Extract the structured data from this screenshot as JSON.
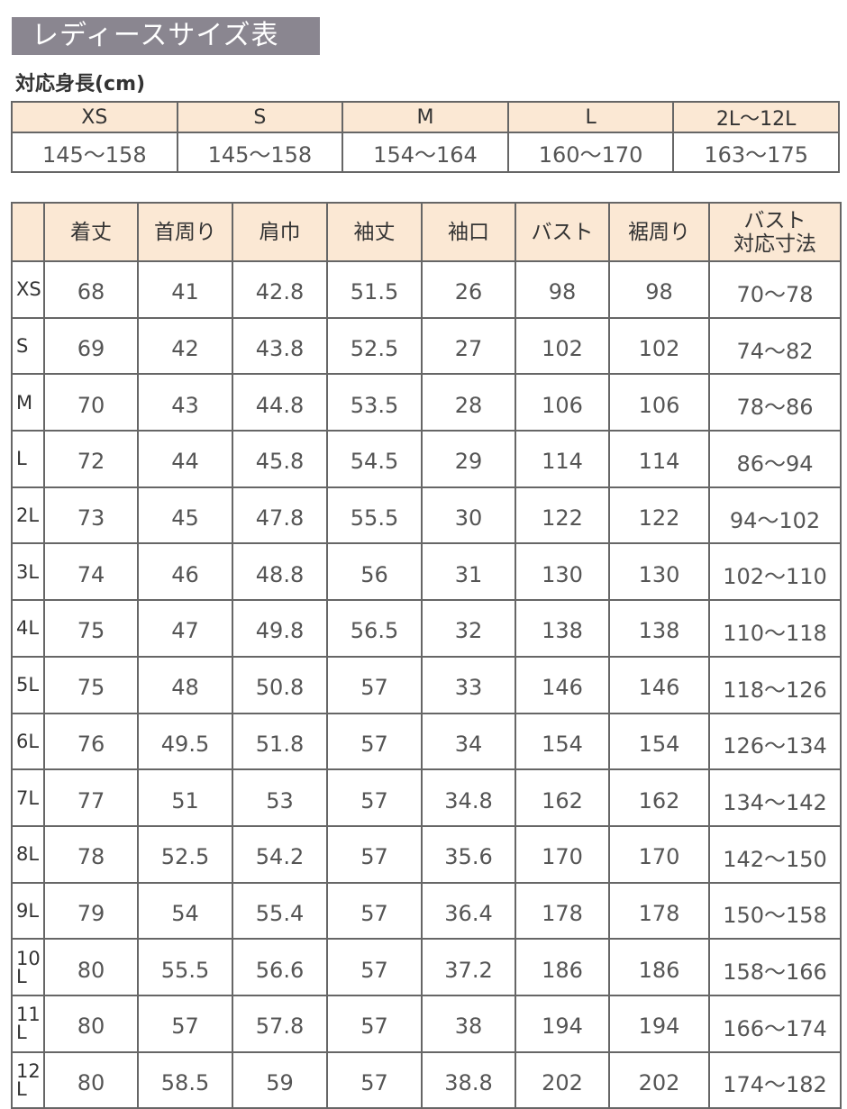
{
  "title": "レディースサイズ表",
  "height_table": {
    "label": "対応身長(cm)",
    "sizes": [
      "XS",
      "S",
      "M",
      "L",
      "2L〜12L"
    ],
    "heights": [
      "145〜158",
      "145〜158",
      "154〜164",
      "160〜170",
      "163〜175"
    ]
  },
  "size_table": {
    "headers": [
      "",
      "着丈",
      "首周り",
      "肩巾",
      "袖丈",
      "袖口",
      "バスト",
      "裾周り",
      "バスト\n対応寸法"
    ],
    "rows": [
      [
        "XS",
        "68",
        "41",
        "42.8",
        "51.5",
        "26",
        "98",
        "98",
        "70〜78"
      ],
      [
        "S",
        "69",
        "42",
        "43.8",
        "52.5",
        "27",
        "102",
        "102",
        "74〜82"
      ],
      [
        "M",
        "70",
        "43",
        "44.8",
        "53.5",
        "28",
        "106",
        "106",
        "78〜86"
      ],
      [
        "L",
        "72",
        "44",
        "45.8",
        "54.5",
        "29",
        "114",
        "114",
        "86〜94"
      ],
      [
        "2L",
        "73",
        "45",
        "47.8",
        "55.5",
        "30",
        "122",
        "122",
        "94〜102"
      ],
      [
        "3L",
        "74",
        "46",
        "48.8",
        "56",
        "31",
        "130",
        "130",
        "102〜110"
      ],
      [
        "4L",
        "75",
        "47",
        "49.8",
        "56.5",
        "32",
        "138",
        "138",
        "110〜118"
      ],
      [
        "5L",
        "75",
        "48",
        "50.8",
        "57",
        "33",
        "146",
        "146",
        "118〜126"
      ],
      [
        "6L",
        "76",
        "49.5",
        "51.8",
        "57",
        "34",
        "154",
        "154",
        "126〜134"
      ],
      [
        "7L",
        "77",
        "51",
        "53",
        "57",
        "34.8",
        "162",
        "162",
        "134〜142"
      ],
      [
        "8L",
        "78",
        "52.5",
        "54.2",
        "57",
        "35.6",
        "170",
        "170",
        "142〜150"
      ],
      [
        "9L",
        "79",
        "54",
        "55.4",
        "57",
        "36.4",
        "178",
        "178",
        "150〜158"
      ],
      [
        "10L",
        "80",
        "55.5",
        "56.6",
        "57",
        "37.2",
        "186",
        "186",
        "158〜166"
      ],
      [
        "11L",
        "80",
        "57",
        "57.8",
        "57",
        "38",
        "194",
        "194",
        "166〜174"
      ],
      [
        "12L",
        "80",
        "58.5",
        "59",
        "57",
        "38.8",
        "202",
        "202",
        "174〜182"
      ]
    ]
  }
}
